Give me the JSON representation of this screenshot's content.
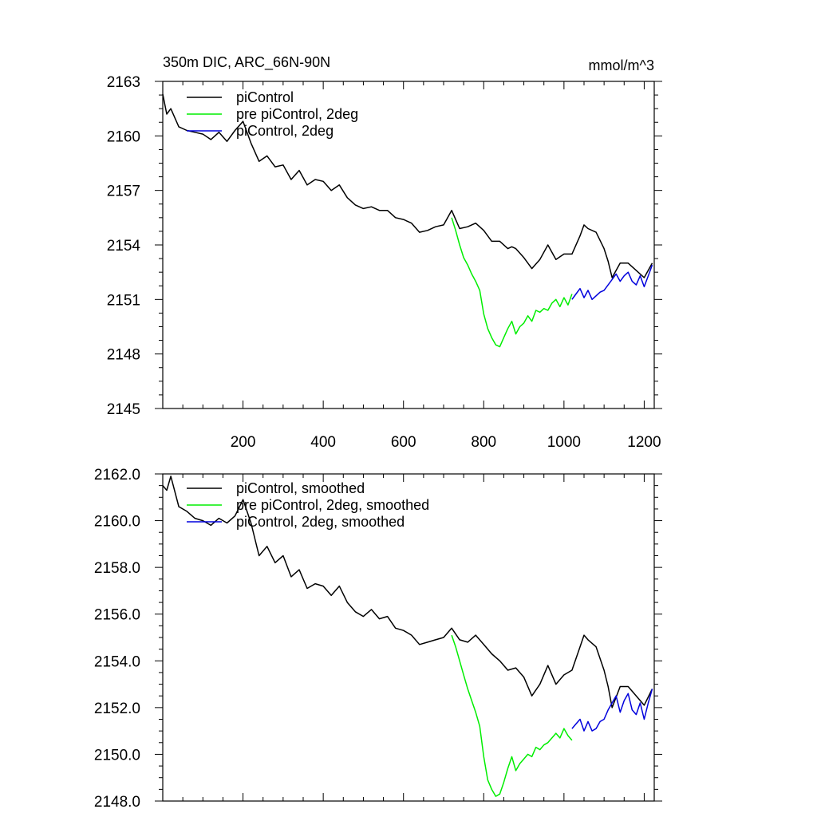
{
  "chart_data": [
    {
      "type": "line",
      "title": "350m DIC, ARC_66N-90N",
      "units": "mmol/m^3",
      "xlim": [
        0,
        1225
      ],
      "ylim": [
        2145,
        2163
      ],
      "xticks": [
        200,
        400,
        600,
        800,
        1000,
        1200
      ],
      "xtick_labels": [
        "200",
        "400",
        "600",
        "800",
        "1000",
        "1200"
      ],
      "yticks": [
        2145,
        2148,
        2151,
        2154,
        2157,
        2160,
        2163
      ],
      "ytick_labels": [
        "2145",
        "2148",
        "2151",
        "2154",
        "2157",
        "2160",
        "2163"
      ],
      "legend_position": "top-left",
      "series": [
        {
          "name": "piControl",
          "color": "#000000",
          "x": [
            0,
            10,
            20,
            40,
            60,
            80,
            100,
            120,
            140,
            160,
            180,
            200,
            220,
            240,
            260,
            280,
            300,
            320,
            340,
            360,
            380,
            400,
            420,
            440,
            460,
            480,
            500,
            520,
            540,
            560,
            580,
            600,
            620,
            640,
            660,
            680,
            700,
            720,
            740,
            760,
            780,
            800,
            820,
            840,
            860,
            870,
            880,
            900,
            920,
            940,
            960,
            980,
            1000,
            1020,
            1040,
            1050,
            1060,
            1080,
            1100,
            1110,
            1120,
            1140,
            1160,
            1180,
            1200,
            1220
          ],
          "y": [
            2162.3,
            2161.2,
            2161.5,
            2160.5,
            2160.3,
            2160.2,
            2160.1,
            2159.8,
            2160.2,
            2159.7,
            2160.3,
            2160.8,
            2159.6,
            2158.6,
            2158.9,
            2158.3,
            2158.4,
            2157.6,
            2158.1,
            2157.3,
            2157.6,
            2157.5,
            2157.0,
            2157.3,
            2156.6,
            2156.2,
            2156.0,
            2156.1,
            2155.9,
            2155.9,
            2155.5,
            2155.4,
            2155.2,
            2154.7,
            2154.8,
            2155.0,
            2155.1,
            2155.9,
            2154.9,
            2155.0,
            2155.2,
            2154.8,
            2154.2,
            2154.2,
            2153.8,
            2153.9,
            2153.8,
            2153.3,
            2152.7,
            2153.2,
            2154.0,
            2153.2,
            2153.5,
            2153.5,
            2154.5,
            2155.1,
            2154.9,
            2154.7,
            2153.8,
            2153.1,
            2152.2,
            2153.0,
            2153.0,
            2152.6,
            2152.2,
            2153.0
          ]
        },
        {
          "name": "pre piControl, 2deg",
          "color": "#00ee00",
          "x": [
            720,
            730,
            740,
            750,
            760,
            770,
            780,
            790,
            800,
            810,
            820,
            830,
            840,
            850,
            860,
            870,
            880,
            890,
            900,
            910,
            920,
            930,
            940,
            950,
            960,
            970,
            980,
            990,
            1000,
            1010,
            1020
          ],
          "y": [
            2155.5,
            2154.8,
            2154.0,
            2153.3,
            2152.9,
            2152.4,
            2152.0,
            2151.5,
            2150.2,
            2149.4,
            2148.9,
            2148.5,
            2148.4,
            2148.9,
            2149.4,
            2149.8,
            2149.1,
            2149.5,
            2149.7,
            2150.1,
            2149.8,
            2150.4,
            2150.3,
            2150.5,
            2150.4,
            2150.8,
            2151.0,
            2150.6,
            2151.1,
            2150.7,
            2151.3
          ]
        },
        {
          "name": "piControl, 2deg",
          "color": "#0000dd",
          "x": [
            1020,
            1030,
            1040,
            1050,
            1060,
            1070,
            1080,
            1090,
            1100,
            1110,
            1120,
            1130,
            1140,
            1150,
            1160,
            1170,
            1180,
            1190,
            1200,
            1210,
            1220
          ],
          "y": [
            2151.0,
            2151.3,
            2151.6,
            2151.1,
            2151.5,
            2151.0,
            2151.2,
            2151.4,
            2151.5,
            2151.8,
            2152.1,
            2152.4,
            2152.0,
            2152.3,
            2152.5,
            2152.0,
            2151.8,
            2152.3,
            2151.7,
            2152.3,
            2152.9
          ]
        }
      ]
    },
    {
      "type": "line",
      "title": "",
      "units": "",
      "xlim": [
        0,
        1225
      ],
      "ylim": [
        2148.0,
        2162.0
      ],
      "xticks": [
        200,
        400,
        600,
        800,
        1000,
        1200
      ],
      "xtick_labels": [],
      "yticks": [
        2148,
        2150,
        2152,
        2154,
        2156,
        2158,
        2160,
        2162
      ],
      "ytick_labels": [
        "2148.0",
        "2150.0",
        "2152.0",
        "2154.0",
        "2156.0",
        "2158.0",
        "2160.0",
        "2162.0"
      ],
      "legend_position": "top-left",
      "series": [
        {
          "name": "piControl, smoothed",
          "color": "#000000",
          "x": [
            0,
            10,
            20,
            40,
            60,
            80,
            100,
            120,
            140,
            160,
            180,
            200,
            220,
            240,
            260,
            280,
            300,
            320,
            340,
            360,
            380,
            400,
            420,
            440,
            460,
            480,
            500,
            520,
            540,
            560,
            580,
            600,
            620,
            640,
            660,
            680,
            700,
            720,
            740,
            760,
            780,
            800,
            820,
            840,
            860,
            880,
            900,
            920,
            940,
            960,
            980,
            1000,
            1020,
            1040,
            1050,
            1060,
            1080,
            1100,
            1110,
            1120,
            1140,
            1160,
            1180,
            1200,
            1220
          ],
          "y": [
            2161.5,
            2161.3,
            2161.9,
            2160.6,
            2160.4,
            2160.1,
            2160.0,
            2159.8,
            2160.1,
            2159.9,
            2160.2,
            2160.9,
            2159.9,
            2158.5,
            2158.9,
            2158.2,
            2158.5,
            2157.6,
            2157.9,
            2157.1,
            2157.3,
            2157.2,
            2156.8,
            2157.2,
            2156.5,
            2156.1,
            2155.9,
            2156.2,
            2155.8,
            2155.9,
            2155.4,
            2155.3,
            2155.1,
            2154.7,
            2154.8,
            2154.9,
            2155.0,
            2155.4,
            2154.9,
            2154.8,
            2155.1,
            2154.7,
            2154.3,
            2154.0,
            2153.6,
            2153.7,
            2153.3,
            2152.5,
            2153.0,
            2153.8,
            2153.0,
            2153.4,
            2153.6,
            2154.6,
            2155.1,
            2154.9,
            2154.6,
            2153.6,
            2152.9,
            2152.0,
            2152.9,
            2152.9,
            2152.5,
            2152.1,
            2152.8
          ]
        },
        {
          "name": "pre piControl, 2deg, smoothed",
          "color": "#00ee00",
          "x": [
            720,
            730,
            740,
            750,
            760,
            770,
            780,
            790,
            800,
            810,
            820,
            830,
            840,
            850,
            860,
            870,
            880,
            890,
            900,
            910,
            920,
            930,
            940,
            950,
            960,
            970,
            980,
            990,
            1000,
            1010,
            1020
          ],
          "y": [
            2155.1,
            2154.6,
            2154.0,
            2153.4,
            2152.8,
            2152.3,
            2151.8,
            2151.2,
            2149.9,
            2148.9,
            2148.5,
            2148.2,
            2148.3,
            2148.8,
            2149.4,
            2149.9,
            2149.3,
            2149.6,
            2149.8,
            2150.0,
            2149.9,
            2150.3,
            2150.2,
            2150.4,
            2150.5,
            2150.7,
            2150.9,
            2150.7,
            2151.1,
            2150.8,
            2150.6
          ]
        },
        {
          "name": "piControl, 2deg, smoothed",
          "color": "#0000dd",
          "x": [
            1020,
            1030,
            1040,
            1050,
            1060,
            1070,
            1080,
            1090,
            1100,
            1110,
            1120,
            1130,
            1140,
            1150,
            1160,
            1170,
            1180,
            1190,
            1200,
            1210,
            1220
          ],
          "y": [
            2151.1,
            2151.3,
            2151.5,
            2151.0,
            2151.4,
            2151.0,
            2151.1,
            2151.4,
            2151.5,
            2151.9,
            2152.2,
            2152.5,
            2151.8,
            2152.3,
            2152.6,
            2151.9,
            2151.7,
            2152.2,
            2151.5,
            2152.2,
            2152.8
          ]
        }
      ]
    }
  ]
}
